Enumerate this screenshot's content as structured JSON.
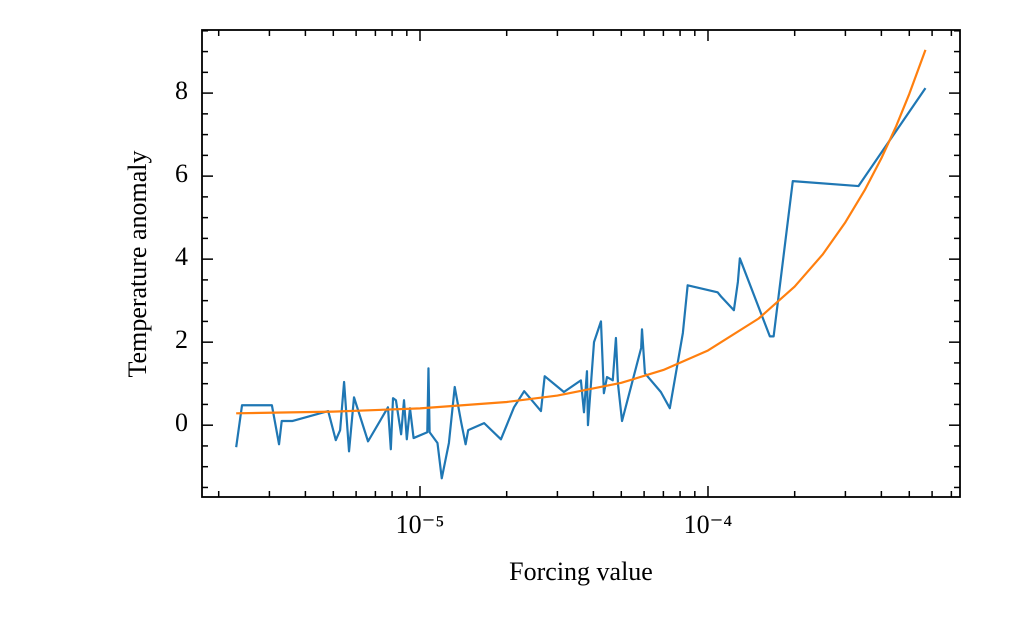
{
  "chart_data": {
    "type": "line",
    "xlabel": "Forcing value",
    "ylabel": "Temperature anomaly",
    "xscale": "log",
    "xlim": [
      1.75e-06,
      0.00075
    ],
    "ylim": [
      -1.73,
      9.52
    ],
    "xticks": [
      {
        "value": 1e-05,
        "label": "10⁻⁵"
      },
      {
        "value": 0.0001,
        "label": "10⁻⁴"
      }
    ],
    "xminorticks": [
      2e-06,
      3e-06,
      4e-06,
      5e-06,
      6e-06,
      7e-06,
      8e-06,
      9e-06,
      2e-05,
      3e-05,
      4e-05,
      5e-05,
      6e-05,
      7e-05,
      8e-05,
      9e-05,
      0.0002,
      0.0003,
      0.0004,
      0.0005,
      0.0006,
      0.0007
    ],
    "yticks": [
      0,
      2,
      4,
      6,
      8
    ],
    "yminorticks": [
      -1.5,
      -1,
      -0.5,
      0.5,
      1,
      1.5,
      2.5,
      3,
      3.5,
      4.5,
      5,
      5.5,
      6.5,
      7,
      7.5,
      8.5,
      9,
      9.5
    ],
    "series": [
      {
        "color": "#1f77b4",
        "x": [
          2.3e-06,
          2.41e-06,
          3.06e-06,
          3.24e-06,
          3.31e-06,
          3.6e-06,
          4.8e-06,
          5.1e-06,
          5.28e-06,
          5.45e-06,
          5.67e-06,
          5.9e-06,
          6.6e-06,
          7.74e-06,
          7.92e-06,
          8.06e-06,
          8.25e-06,
          8.6e-06,
          8.8e-06,
          9e-06,
          9.23e-06,
          9.5e-06,
          1.06e-05,
          1.07e-05,
          1.08e-05,
          1.15e-05,
          1.19e-05,
          1.26e-05,
          1.32e-05,
          1.39e-05,
          1.44e-05,
          1.47e-05,
          1.67e-05,
          1.91e-05,
          2.12e-05,
          2.3e-05,
          2.63e-05,
          2.71e-05,
          3.16e-05,
          3.62e-05,
          3.71e-05,
          3.8e-05,
          3.83e-05,
          4.02e-05,
          4.25e-05,
          4.35e-05,
          4.46e-05,
          4.67e-05,
          4.79e-05,
          4.87e-05,
          5.03e-05,
          5.86e-05,
          5.9e-05,
          6.04e-05,
          6.86e-05,
          7.37e-05,
          8.18e-05,
          8.5e-05,
          0.000108,
          0.000111,
          0.000123,
          0.000127,
          0.000129,
          0.000164,
          0.000169,
          0.000197,
          0.000333,
          0.000569
        ],
        "values": [
          -0.53,
          0.48,
          0.48,
          -0.46,
          0.1,
          0.1,
          0.34,
          -0.36,
          -0.12,
          1.04,
          -0.63,
          0.67,
          -0.39,
          0.43,
          -0.58,
          0.65,
          0.6,
          -0.22,
          0.6,
          -0.34,
          0.41,
          -0.31,
          -0.17,
          1.37,
          -0.17,
          -0.43,
          -1.28,
          -0.43,
          0.92,
          0.07,
          -0.46,
          -0.12,
          0.05,
          -0.34,
          0.43,
          0.82,
          0.34,
          1.18,
          0.8,
          1.08,
          0.31,
          1.3,
          0.0,
          2.0,
          2.5,
          0.77,
          1.16,
          1.08,
          2.1,
          0.99,
          0.1,
          1.86,
          2.31,
          1.25,
          0.8,
          0.41,
          2.22,
          3.37,
          3.2,
          3.1,
          2.77,
          3.45,
          4.02,
          2.14,
          2.14,
          5.88,
          5.76,
          8.12
        ]
      },
      {
        "color": "#ff7f0e",
        "x": [
          2.3e-06,
          5e-06,
          1e-05,
          2e-05,
          3e-05,
          5e-05,
          7e-05,
          0.0001,
          0.00015,
          0.0002,
          0.00025,
          0.0003,
          0.00035,
          0.0004,
          0.00045,
          0.0005,
          0.000569
        ],
        "values": [
          0.286,
          0.327,
          0.405,
          0.559,
          0.714,
          1.02,
          1.33,
          1.8,
          2.57,
          3.34,
          4.11,
          4.89,
          5.66,
          6.43,
          7.2,
          7.98,
          9.04
        ]
      }
    ]
  }
}
